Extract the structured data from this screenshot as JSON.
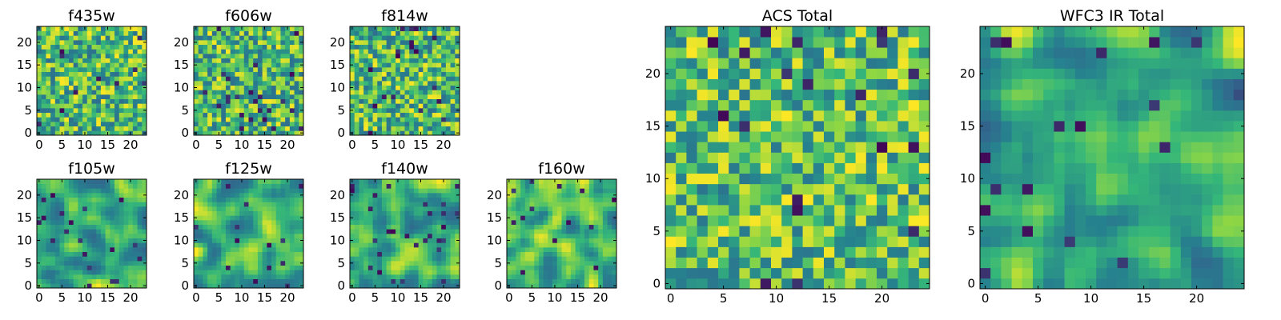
{
  "figure": {
    "colormap": [
      "#440154",
      "#31688e",
      "#26828e",
      "#35b779",
      "#90d743",
      "#fde725"
    ]
  },
  "chart_data": [
    {
      "type": "heatmap",
      "title": "f435w",
      "size": 24,
      "texture": "noise",
      "seed": 11,
      "range": [
        0.25,
        1.0
      ],
      "xticks": [
        0,
        5,
        10,
        15,
        20
      ],
      "yticks": [
        0,
        5,
        10,
        15,
        20
      ]
    },
    {
      "type": "heatmap",
      "title": "f606w",
      "size": 24,
      "texture": "noise",
      "seed": 23,
      "range": [
        0.25,
        1.0
      ],
      "xticks": [
        0,
        5,
        10,
        15,
        20
      ],
      "yticks": [
        0,
        5,
        10,
        15,
        20
      ]
    },
    {
      "type": "heatmap",
      "title": "f814w",
      "size": 24,
      "texture": "noise",
      "seed": 37,
      "range": [
        0.25,
        1.0
      ],
      "xticks": [
        0,
        5,
        10,
        15,
        20
      ],
      "yticks": [
        0,
        5,
        10,
        15,
        20
      ]
    },
    {
      "type": "heatmap",
      "title": "f105w",
      "size": 24,
      "texture": "smooth",
      "seed": 41,
      "range": [
        0.2,
        1.0
      ],
      "xticks": [
        0,
        5,
        10,
        15,
        20
      ],
      "yticks": [
        0,
        5,
        10,
        15,
        20
      ]
    },
    {
      "type": "heatmap",
      "title": "f125w",
      "size": 24,
      "texture": "smooth",
      "seed": 53,
      "range": [
        0.2,
        1.0
      ],
      "xticks": [
        0,
        5,
        10,
        15,
        20
      ],
      "yticks": [
        0,
        5,
        10,
        15,
        20
      ]
    },
    {
      "type": "heatmap",
      "title": "f140w",
      "size": 24,
      "texture": "smooth",
      "seed": 67,
      "range": [
        0.2,
        1.0
      ],
      "xticks": [
        0,
        5,
        10,
        15,
        20
      ],
      "yticks": [
        0,
        5,
        10,
        15,
        20
      ]
    },
    {
      "type": "heatmap",
      "title": "f160w",
      "size": 24,
      "texture": "smooth",
      "seed": 79,
      "range": [
        0.2,
        1.0
      ],
      "xticks": [
        0,
        5,
        10,
        15,
        20
      ],
      "yticks": [
        0,
        5,
        10,
        15,
        20
      ]
    },
    {
      "type": "heatmap",
      "title": "ACS Total",
      "size": 25,
      "texture": "noise",
      "seed": 97,
      "range": [
        0.3,
        1.0
      ],
      "xticks": [
        0,
        5,
        10,
        15,
        20
      ],
      "yticks": [
        0,
        5,
        10,
        15,
        20
      ]
    },
    {
      "type": "heatmap",
      "title": "WFC3 IR Total",
      "size": 25,
      "texture": "smooth",
      "seed": 113,
      "range": [
        0.15,
        1.0
      ],
      "xticks": [
        0,
        5,
        10,
        15,
        20
      ],
      "yticks": [
        0,
        5,
        10,
        15,
        20
      ]
    }
  ]
}
